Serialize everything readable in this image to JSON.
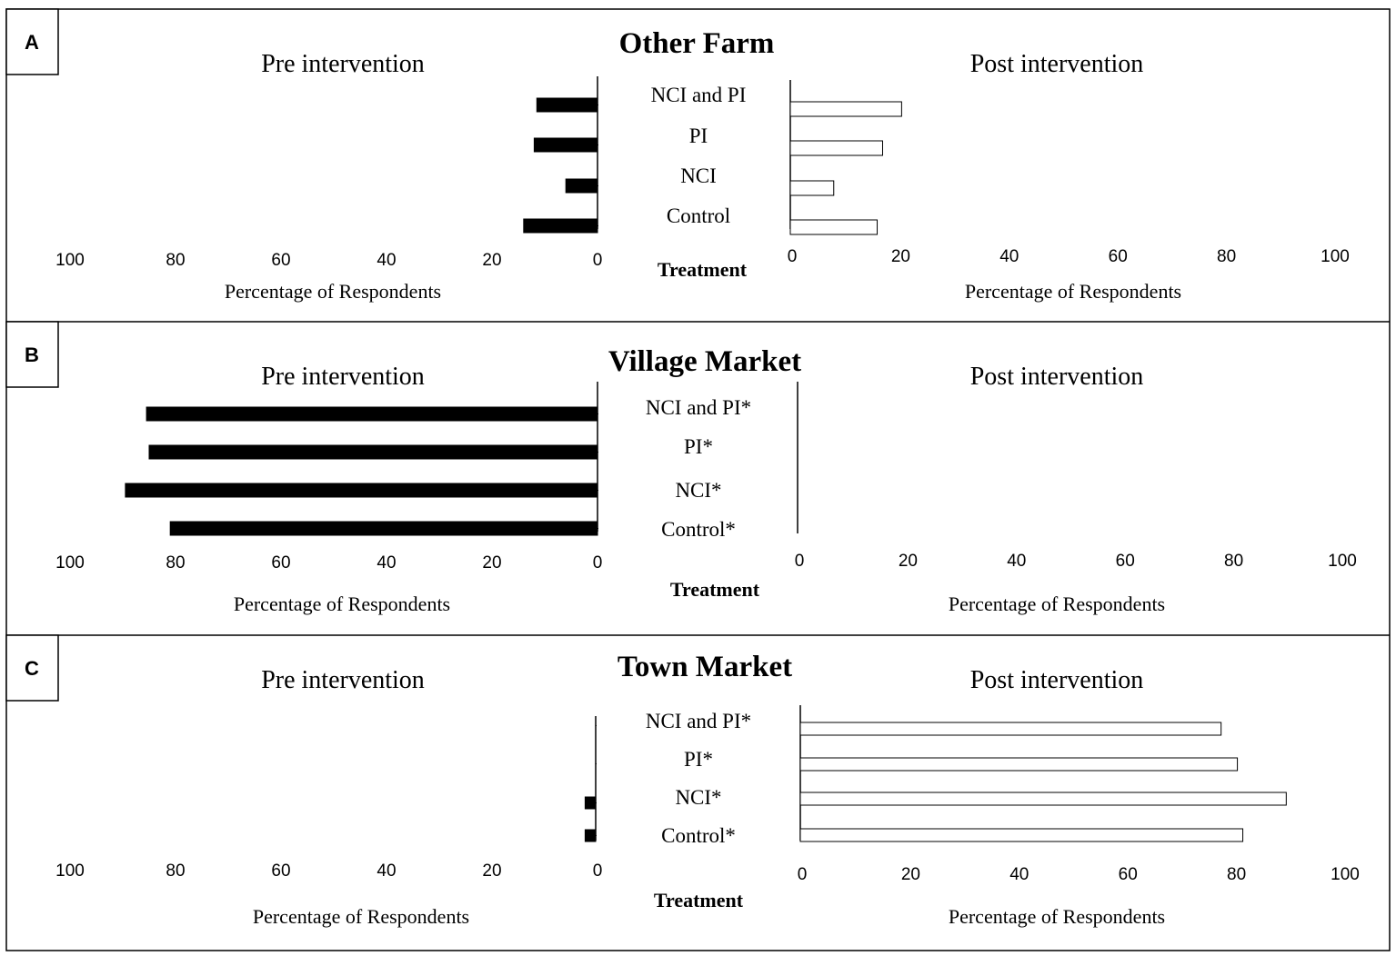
{
  "chart_data": [
    {
      "type": "bar",
      "panel_label": "A",
      "title": "Other Farm",
      "ylabel": "Treatment",
      "categories": [
        "NCI and PI",
        "PI",
        "NCI",
        "Control"
      ],
      "xlim": [
        0,
        100
      ],
      "xticks": [
        "0",
        "20",
        "40",
        "60",
        "80",
        "100"
      ],
      "grid": false,
      "series": [
        {
          "name": "Pre intervention",
          "xlabel": "Percentage of Respondents",
          "values": [
            11.5,
            12,
            6,
            14
          ],
          "color": "#000000"
        },
        {
          "name": "Post intervention",
          "xlabel": "Percentage of Respondents",
          "values": [
            20.5,
            17,
            8,
            16
          ],
          "color": "#ffffff"
        }
      ]
    },
    {
      "type": "bar",
      "panel_label": "B",
      "title": "Village Market",
      "ylabel": "Treatment",
      "categories": [
        "NCI and PI*",
        "PI*",
        "NCI*",
        "Control*"
      ],
      "xlim": [
        0,
        100
      ],
      "xticks": [
        "0",
        "20",
        "40",
        "60",
        "80",
        "100"
      ],
      "grid": false,
      "series": [
        {
          "name": "Pre intervention",
          "xlabel": "Percentage of Respondents",
          "values": [
            85.5,
            85,
            89.5,
            81
          ],
          "color": "#000000"
        },
        {
          "name": "Post intervention",
          "xlabel": "Percentage of Respondents",
          "values": [
            0,
            0,
            0,
            0
          ],
          "color": "#ffffff"
        }
      ]
    },
    {
      "type": "bar",
      "panel_label": "C",
      "title": "Town Market",
      "ylabel": "Treatment",
      "categories": [
        "NCI and PI*",
        "PI*",
        "NCI*",
        "Control*"
      ],
      "xlim": [
        0,
        100
      ],
      "xticks": [
        "0",
        "20",
        "40",
        "60",
        "80",
        "100"
      ],
      "grid": false,
      "series": [
        {
          "name": "Pre intervention",
          "xlabel": "Percentage of Respondents",
          "values": [
            0,
            0,
            2,
            2
          ],
          "color": "#000000"
        },
        {
          "name": "Post intervention",
          "xlabel": "Percentage of Respondents",
          "values": [
            77.5,
            80.5,
            89.5,
            81.5
          ],
          "color": "#ffffff"
        }
      ]
    }
  ]
}
